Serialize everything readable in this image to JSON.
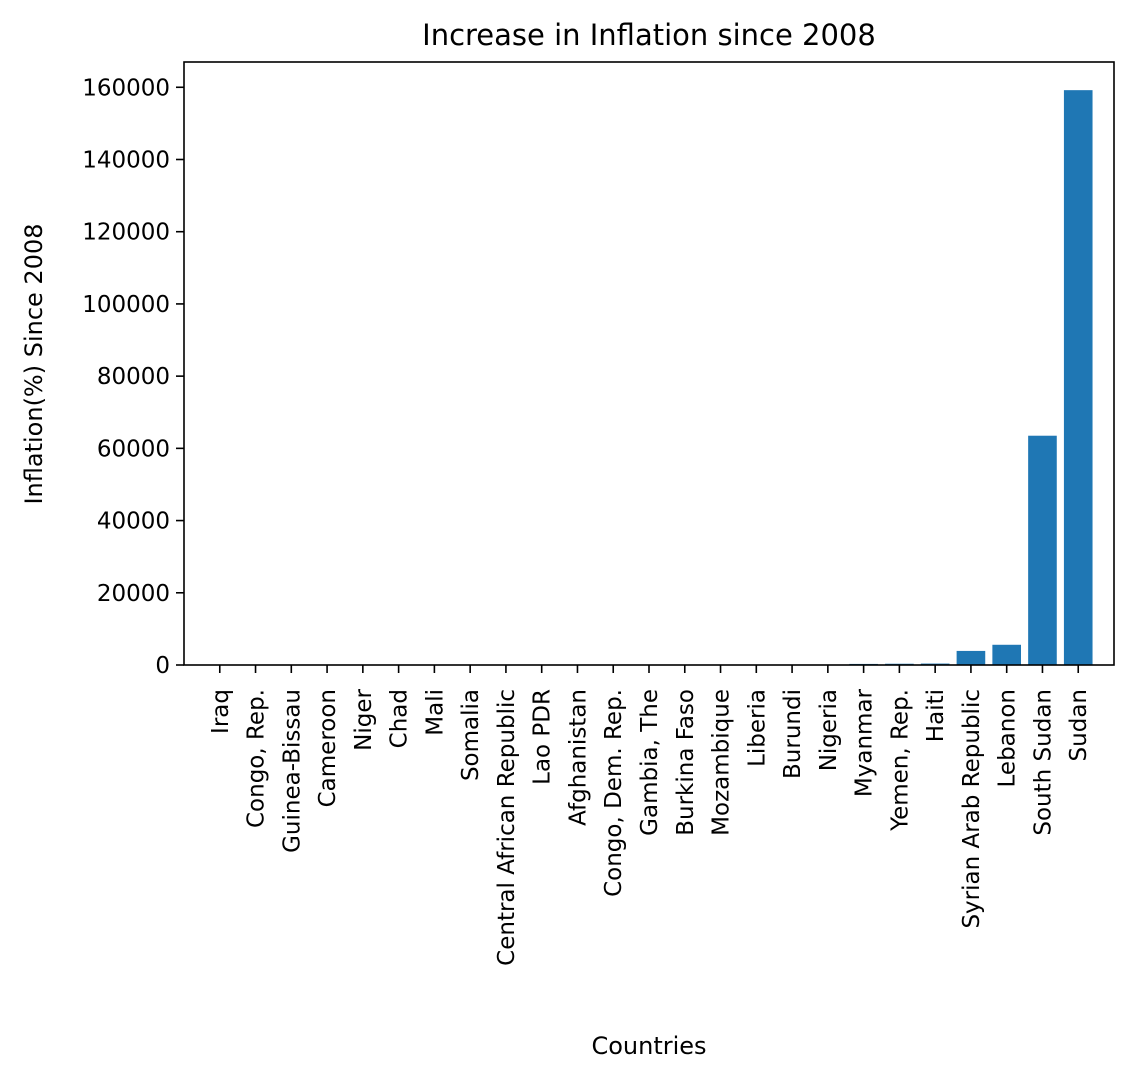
{
  "chart_data": {
    "type": "bar",
    "title": "Increase in Inflation since 2008",
    "xlabel": "Countries",
    "ylabel": "Inflation(%) Since 2008",
    "categories": [
      "Iraq",
      "Congo, Rep.",
      "Guinea-Bissau",
      "Cameroon",
      "Niger",
      "Chad",
      "Mali",
      "Somalia",
      "Central African Republic",
      "Lao PDR",
      "Afghanistan",
      "Congo, Dem. Rep.",
      "Gambia, The",
      "Burkina Faso",
      "Mozambique",
      "Liberia",
      "Burundi",
      "Nigeria",
      "Myanmar",
      "Yemen, Rep.",
      "Haiti",
      "Syrian Arab Republic",
      "Lebanon",
      "South Sudan",
      "Sudan"
    ],
    "values": [
      20,
      25,
      30,
      30,
      35,
      35,
      40,
      40,
      45,
      50,
      55,
      60,
      65,
      70,
      80,
      90,
      100,
      120,
      300,
      350,
      400,
      3900,
      5600,
      63500,
      159200
    ],
    "ylim": [
      0,
      167000
    ],
    "yticks": [
      0,
      20000,
      40000,
      60000,
      80000,
      100000,
      120000,
      140000,
      160000
    ],
    "bar_color": "#1f77b4",
    "grid": false,
    "legend": "none"
  }
}
